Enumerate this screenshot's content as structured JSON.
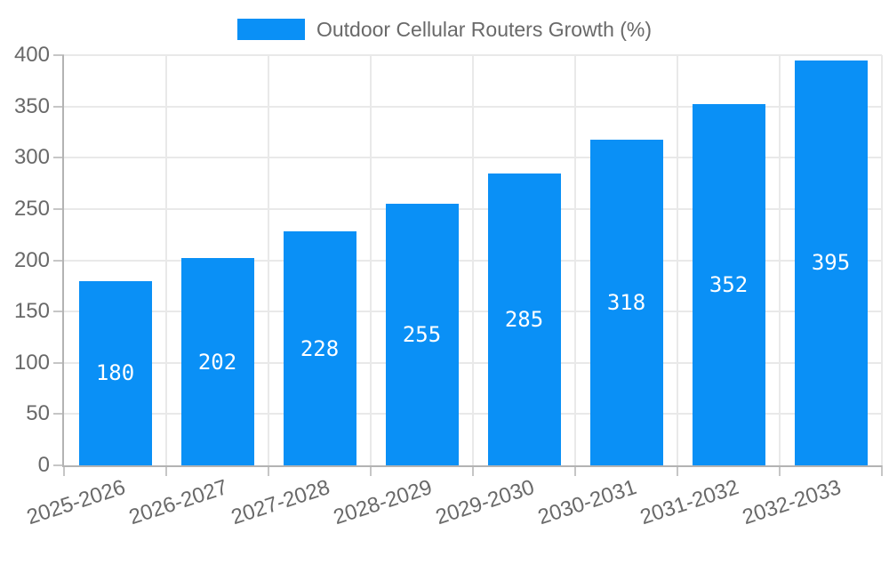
{
  "legend": {
    "label": "Outdoor Cellular Routers Growth (%)"
  },
  "chart_data": {
    "type": "bar",
    "title": "Outdoor Cellular Routers Growth (%)",
    "series_name": "Outdoor Cellular Routers Growth (%)",
    "categories": [
      "2025-2026",
      "2026-2027",
      "2027-2028",
      "2028-2029",
      "2029-2030",
      "2030-2031",
      "2031-2032",
      "2032-2033"
    ],
    "values": [
      180,
      202,
      228,
      255,
      285,
      318,
      352,
      395
    ],
    "value_labels": [
      "180",
      "202",
      "228",
      "255",
      "285",
      "318",
      "352",
      "395"
    ],
    "xlabel": "",
    "ylabel": "",
    "ylim": [
      0,
      400
    ],
    "ytick_step": 50,
    "yticks": [
      0,
      50,
      100,
      150,
      200,
      250,
      300,
      350,
      400
    ],
    "grid": true,
    "legend_position": "top",
    "x_label_rotation_deg": -18,
    "colors": {
      "bar": "#0a90f6",
      "value_text": "#ffffff",
      "axis_text": "#696969",
      "gridline": "#e9e9e9",
      "axis_line": "#b3b3b3",
      "tick": "#c6c6c6",
      "background": "#ffffff"
    }
  }
}
